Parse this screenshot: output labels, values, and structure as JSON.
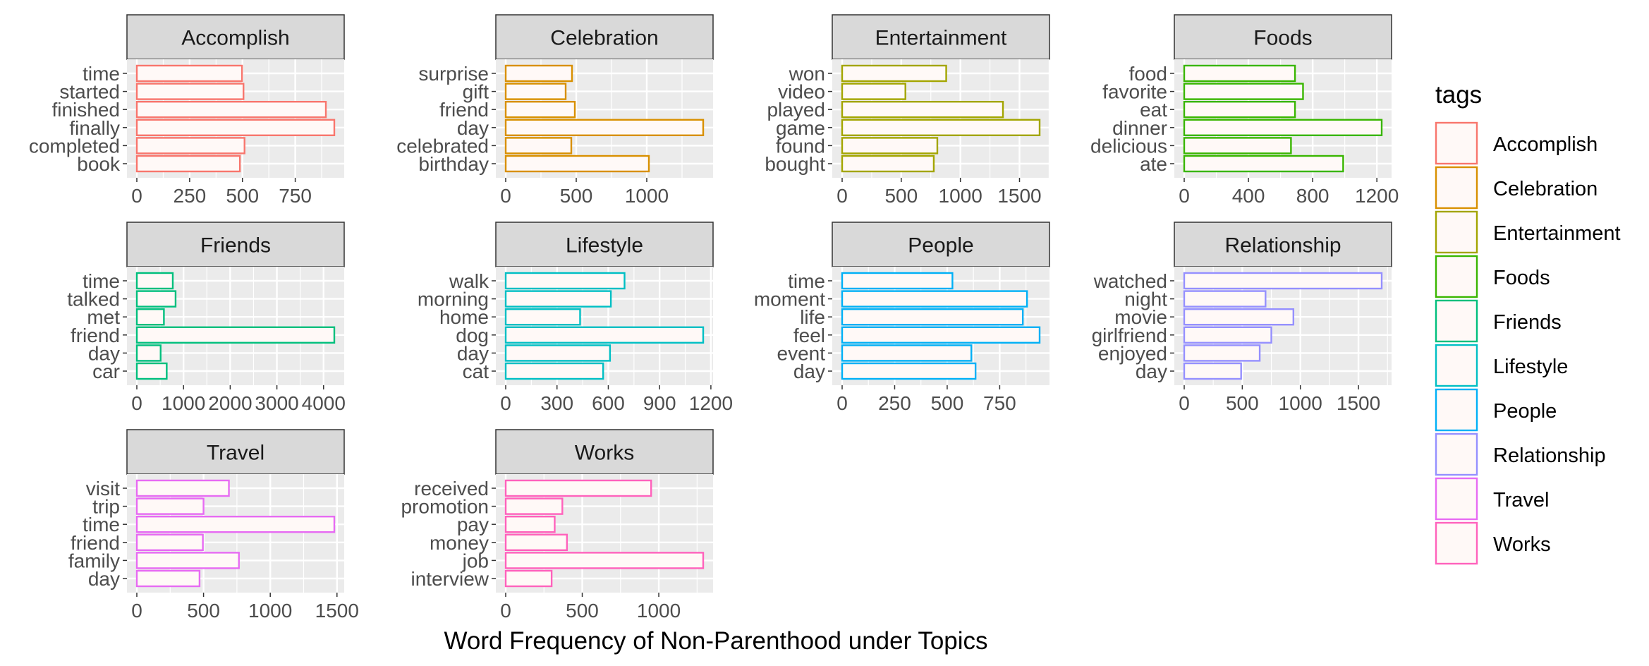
{
  "chart_data": {
    "type": "bar",
    "orientation": "horizontal",
    "facet_layout": "wrap",
    "xlabel": "Word Frequency of Non-Parenthood under Topics",
    "legend": {
      "title": "tags",
      "position": "right",
      "entries": [
        "Accomplish",
        "Celebration",
        "Entertainment",
        "Foods",
        "Friends",
        "Lifestyle",
        "People",
        "Relationship",
        "Travel",
        "Works"
      ]
    },
    "colors": {
      "Accomplish": "#F8766D",
      "Celebration": "#D89000",
      "Entertainment": "#A3A500",
      "Foods": "#39B600",
      "Friends": "#00BF7D",
      "Lifestyle": "#00BFC4",
      "People": "#00B0F6",
      "Relationship": "#9590FF",
      "Travel": "#E76BF3",
      "Works": "#FF62BC"
    },
    "bar_fill": "#FFF9F7",
    "panel_background": "#EBEBEB",
    "strip_background": "#D9D9D9",
    "panels": [
      {
        "tag": "Accomplish",
        "categories": [
          "time",
          "started",
          "finished",
          "finally",
          "completed",
          "book"
        ],
        "values": [
          498,
          505,
          895,
          935,
          510,
          488
        ],
        "xlim": [
          0,
          935
        ],
        "ticks": [
          0,
          250,
          500,
          750
        ],
        "tick_labels": [
          "0",
          "250",
          "500",
          "750"
        ]
      },
      {
        "tag": "Celebration",
        "categories": [
          "surprise",
          "gift",
          "friend",
          "day",
          "celebrated",
          "birthday"
        ],
        "values": [
          470,
          425,
          490,
          1400,
          465,
          1015
        ],
        "xlim": [
          0,
          1400
        ],
        "ticks": [
          0,
          500,
          1000
        ],
        "tick_labels": [
          "0",
          "500",
          "1000"
        ]
      },
      {
        "tag": "Entertainment",
        "categories": [
          "won",
          "video",
          "played",
          "game",
          "found",
          "bought"
        ],
        "values": [
          880,
          535,
          1360,
          1670,
          805,
          775
        ],
        "xlim": [
          0,
          1670
        ],
        "ticks": [
          0,
          500,
          1000,
          1500
        ],
        "tick_labels": [
          "0",
          "500",
          "1000",
          "1500"
        ]
      },
      {
        "tag": "Foods",
        "categories": [
          "food",
          "favorite",
          "eat",
          "dinner",
          "delicious",
          "ate"
        ],
        "values": [
          690,
          740,
          690,
          1230,
          665,
          990
        ],
        "xlim": [
          0,
          1230
        ],
        "ticks": [
          0,
          400,
          800,
          1200
        ],
        "tick_labels": [
          "0",
          "400",
          "800",
          "1200"
        ]
      },
      {
        "tag": "Friends",
        "categories": [
          "time",
          "talked",
          "met",
          "friend",
          "day",
          "car"
        ],
        "values": [
          770,
          830,
          580,
          4230,
          510,
          640
        ],
        "xlim": [
          0,
          4230
        ],
        "ticks": [
          0,
          1000,
          2000,
          3000,
          4000
        ],
        "tick_labels": [
          "0",
          "1000",
          "2000",
          "3000",
          "4000"
        ]
      },
      {
        "tag": "Lifestyle",
        "categories": [
          "walk",
          "morning",
          "home",
          "dog",
          "day",
          "cat"
        ],
        "values": [
          695,
          615,
          435,
          1155,
          610,
          570
        ],
        "xlim": [
          0,
          1155
        ],
        "ticks": [
          0,
          300,
          600,
          900,
          1200
        ],
        "tick_labels": [
          "0",
          "300",
          "600",
          "900",
          "1200"
        ]
      },
      {
        "tag": "People",
        "categories": [
          "time",
          "moment",
          "life",
          "feel",
          "event",
          "day"
        ],
        "values": [
          525,
          880,
          860,
          940,
          615,
          635
        ],
        "xlim": [
          0,
          940
        ],
        "ticks": [
          0,
          250,
          500,
          750
        ],
        "tick_labels": [
          "0",
          "250",
          "500",
          "750"
        ]
      },
      {
        "tag": "Relationship",
        "categories": [
          "watched",
          "night",
          "movie",
          "girlfriend",
          "enjoyed",
          "day"
        ],
        "values": [
          1700,
          700,
          940,
          750,
          650,
          490
        ],
        "xlim": [
          0,
          1700
        ],
        "ticks": [
          0,
          500,
          1000,
          1500
        ],
        "tick_labels": [
          "0",
          "500",
          "1000",
          "1500"
        ]
      },
      {
        "tag": "Travel",
        "categories": [
          "visit",
          "trip",
          "time",
          "friend",
          "family",
          "day"
        ],
        "values": [
          690,
          500,
          1480,
          495,
          765,
          470
        ],
        "xlim": [
          0,
          1480
        ],
        "ticks": [
          0,
          500,
          1000,
          1500
        ],
        "tick_labels": [
          "0",
          "500",
          "1000",
          "1500"
        ]
      },
      {
        "tag": "Works",
        "categories": [
          "received",
          "promotion",
          "pay",
          "money",
          "job",
          "interview"
        ],
        "values": [
          950,
          370,
          320,
          400,
          1290,
          300
        ],
        "xlim": [
          0,
          1290
        ],
        "ticks": [
          0,
          500,
          1000
        ],
        "tick_labels": [
          "0",
          "500",
          "1000"
        ]
      }
    ]
  }
}
